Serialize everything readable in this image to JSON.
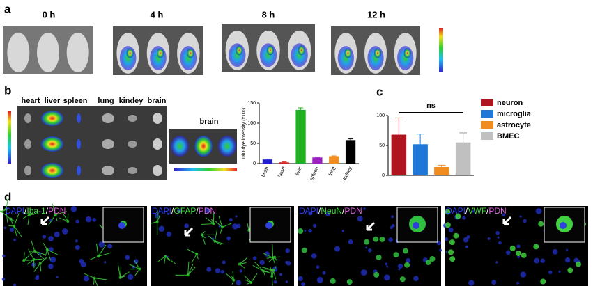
{
  "panel_labels": [
    "a",
    "b",
    "c",
    "d"
  ],
  "panel_a": {
    "time_labels": [
      "0 h",
      "4 h",
      "8 h",
      "12 h"
    ]
  },
  "panel_b": {
    "organ_labels": [
      "heart",
      "liver",
      "spleen",
      "lung",
      "kindey",
      "brain"
    ],
    "brain_label": "brain",
    "chart": {
      "type": "bar",
      "y_label": "DiD dye intensity (x10⁶)",
      "categories": [
        "brain",
        "heart",
        "liver",
        "spleen",
        "lung",
        "kidney"
      ],
      "values": [
        10,
        3,
        133,
        15,
        18,
        58
      ],
      "errors": [
        1,
        1,
        5,
        1,
        1,
        3
      ],
      "colors": [
        "#1f1fd0",
        "#d01f1f",
        "#20b020",
        "#9a20c0",
        "#f08c20",
        "#000000"
      ],
      "ylim": [
        0,
        150
      ],
      "yticks": [
        0,
        50,
        100,
        150
      ]
    }
  },
  "panel_c": {
    "chart": {
      "type": "bar",
      "annotation": "ns",
      "series": [
        {
          "name": "neuron",
          "color": "#b0141e",
          "values": [
            68
          ],
          "errors": [
            28
          ]
        },
        {
          "name": "microglia",
          "color": "#1f78d8",
          "values": [
            52
          ],
          "errors": [
            17
          ]
        },
        {
          "name": "astrocyte",
          "color": "#f08c20",
          "values": [
            14
          ],
          "errors": [
            3
          ]
        },
        {
          "name": "BMEC",
          "color": "#c0c0c0",
          "values": [
            55
          ],
          "errors": [
            16
          ]
        }
      ],
      "ylim": [
        0,
        100
      ],
      "yticks": [
        0,
        50,
        100
      ]
    }
  },
  "panel_d": {
    "stain_labels": [
      [
        "DAPI",
        "/",
        "Iba-1",
        "/",
        "PDN"
      ],
      [
        "DAPI",
        "/",
        "GFAP",
        "/",
        "PDN"
      ],
      [
        "DAPI",
        "/",
        "NeuN",
        "/",
        "PDN"
      ],
      [
        "DAPI",
        "/",
        "VWF",
        "/",
        "PDN"
      ]
    ]
  }
}
